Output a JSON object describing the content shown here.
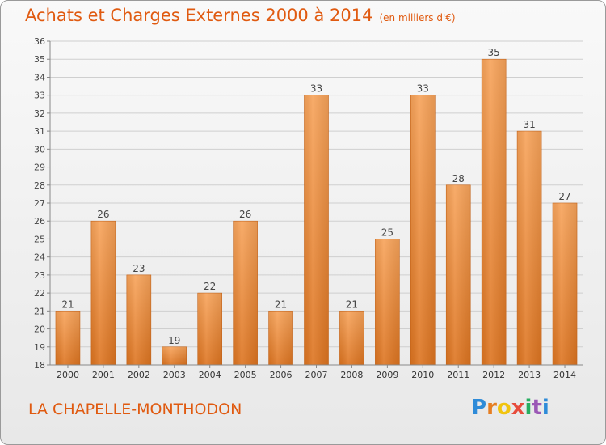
{
  "header": {
    "title": "Achats et Charges Externes 2000 à 2014",
    "unit": "(en milliers d'€)"
  },
  "footer": {
    "place": "LA CHAPELLE-MONTHODON"
  },
  "logo": {
    "letters": [
      "P",
      "r",
      "o",
      "x",
      "i",
      "t",
      "i"
    ],
    "colors": [
      "#2e8bd8",
      "#e67e22",
      "#f1c40f",
      "#e74c3c",
      "#27ae60",
      "#9b59b6",
      "#2e8bd8"
    ]
  },
  "colors": {
    "bar_top": "#f7a35a",
    "bar_bottom": "#dd7420",
    "text": "#e05a10",
    "grid": "#cfcfcf"
  },
  "chart_data": {
    "type": "bar",
    "title": "Achats et Charges Externes 2000 à 2014",
    "categories": [
      "2000",
      "2001",
      "2002",
      "2003",
      "2004",
      "2005",
      "2006",
      "2007",
      "2008",
      "2009",
      "2010",
      "2011",
      "2012",
      "2013",
      "2014"
    ],
    "values": [
      21,
      26,
      23,
      19,
      22,
      26,
      21,
      33,
      21,
      25,
      33,
      28,
      35,
      31,
      27
    ],
    "ylim": [
      18,
      36
    ],
    "yticks": [
      18,
      19,
      20,
      21,
      22,
      23,
      24,
      25,
      26,
      27,
      28,
      29,
      30,
      31,
      32,
      33,
      34,
      35,
      36
    ],
    "grid": true,
    "data_labels": true
  }
}
